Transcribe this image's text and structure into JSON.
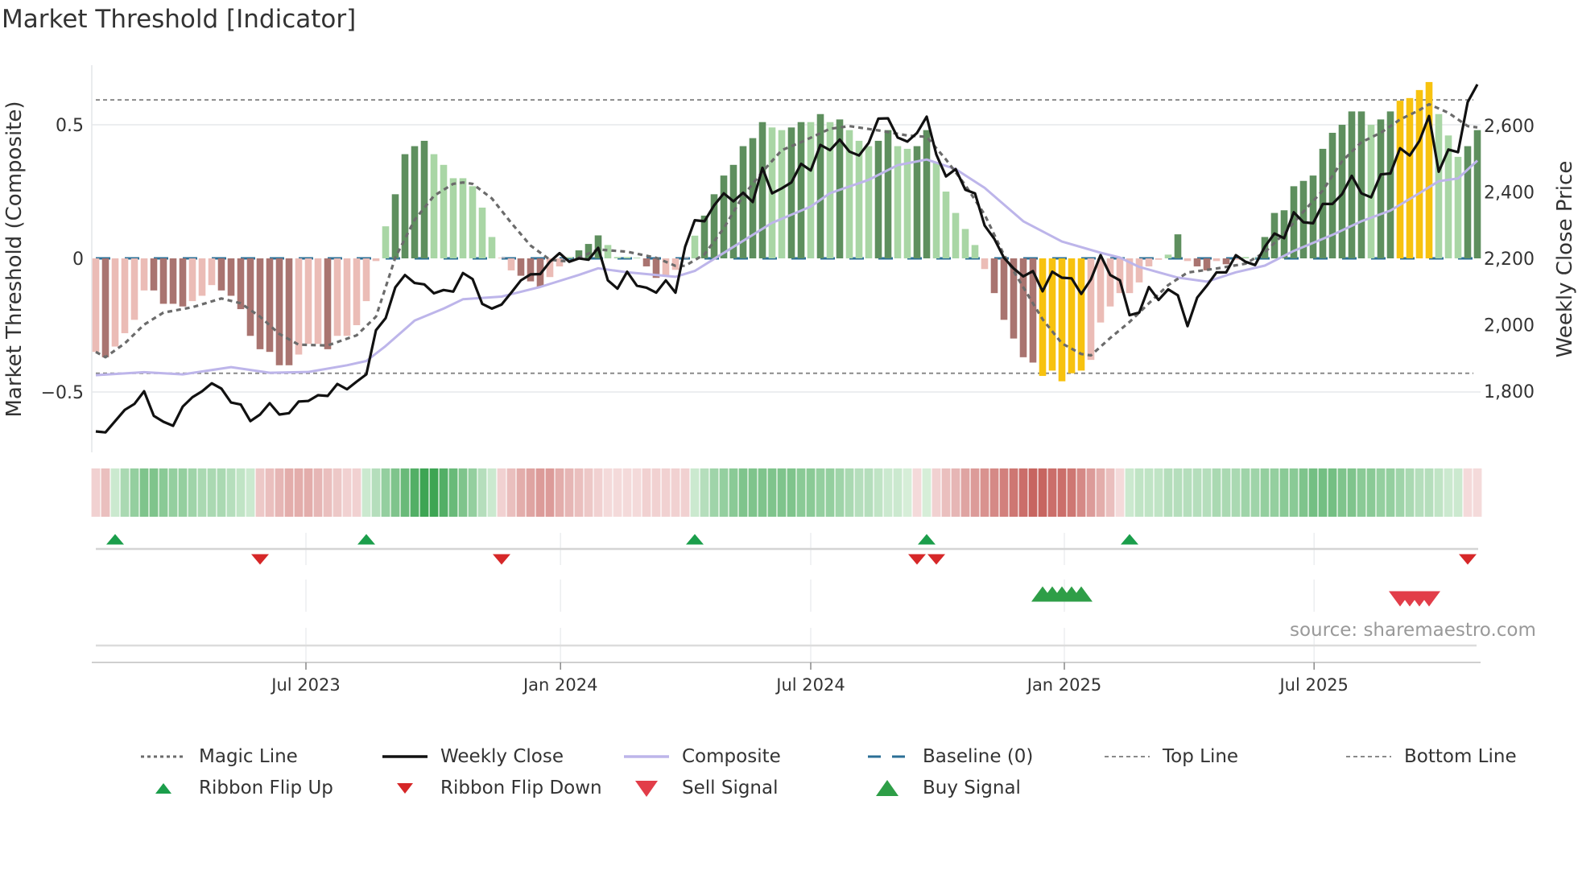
{
  "title": "Market Threshold [Indicator]",
  "source": "source: sharemaestro.com",
  "colors": {
    "bar_dark_green": "#5e8f5e",
    "bar_light_green": "#a9d6a5",
    "bar_dark_red": "#a97470",
    "bar_light_red": "#ebbcb6",
    "bar_yellow": "#f7c20f",
    "weekly_close": "#111111",
    "magic_line": "#6b6b6b",
    "composite_line": "#bdb5ea",
    "baseline": "#2b6f96",
    "threshold_lines": "#8a8a8a",
    "flip_up": "#1b9e4b",
    "flip_down": "#d62728",
    "buy": "#2e9e47",
    "sell": "#e23d49"
  },
  "legend": [
    {
      "label": "Magic Line",
      "icon": "dotted-line"
    },
    {
      "label": "Weekly Close",
      "icon": "solid-black-line"
    },
    {
      "label": "Composite",
      "icon": "lavender-line"
    },
    {
      "label": "Baseline (0)",
      "icon": "dashed-blue-line"
    },
    {
      "label": "Top Line",
      "icon": "dashed-gray-line"
    },
    {
      "label": "Bottom Line",
      "icon": "dashed-gray-line"
    },
    {
      "label": "Ribbon Flip Up",
      "icon": "triangle-up-small"
    },
    {
      "label": "Ribbon Flip Down",
      "icon": "triangle-down-small"
    },
    {
      "label": "Sell Signal",
      "icon": "triangle-down-large"
    },
    {
      "label": "Buy Signal",
      "icon": "triangle-up-large"
    }
  ],
  "chart_data": {
    "type": "bar",
    "title": "Market Threshold [Indicator]",
    "ylabel": "Market Threshold (Composite)",
    "ylabel_right": "Weekly Close Price",
    "ylim": [
      -0.726,
      0.723
    ],
    "ylim_right": [
      1616,
      2782
    ],
    "yticks": [
      {
        "value": 0.5,
        "label": "0.5"
      },
      {
        "value": 0,
        "label": "0"
      },
      {
        "value": -0.5,
        "label": "−0.5"
      }
    ],
    "yticks_right": [
      {
        "value": 2600,
        "label": "2,600"
      },
      {
        "value": 2400,
        "label": "2,400"
      },
      {
        "value": 2200,
        "label": "2,200"
      },
      {
        "value": 2000,
        "label": "2,000"
      },
      {
        "value": 1800,
        "label": "1,800"
      }
    ],
    "x_unit": "week index",
    "xticks": [
      {
        "week": 21.75,
        "label": "Jul 2023"
      },
      {
        "week": 48.1,
        "label": "Jan 2024"
      },
      {
        "week": 74.0,
        "label": "Jul 2024"
      },
      {
        "week": 100.25,
        "label": "Jan 2025"
      },
      {
        "week": 126.1,
        "label": "Jul 2025"
      }
    ],
    "baseline": 0,
    "top_line": 0.593,
    "bottom_line": -0.43,
    "composite_bars": [
      -0.35,
      -0.37,
      -0.33,
      -0.28,
      -0.23,
      -0.12,
      -0.12,
      -0.17,
      -0.17,
      -0.18,
      -0.16,
      -0.14,
      -0.1,
      -0.12,
      -0.14,
      -0.19,
      -0.29,
      -0.34,
      -0.35,
      -0.4,
      -0.4,
      -0.36,
      -0.32,
      -0.32,
      -0.34,
      -0.29,
      -0.29,
      -0.25,
      -0.16,
      -0.01,
      0.12,
      0.24,
      0.39,
      0.42,
      0.44,
      0.39,
      0.35,
      0.3,
      0.3,
      0.27,
      0.19,
      0.08,
      0.0,
      -0.045,
      -0.065,
      -0.086,
      -0.106,
      -0.07,
      -0.03,
      0.005,
      0.03,
      0.054,
      0.086,
      0.05,
      0.005,
      0.005,
      0.0,
      -0.03,
      -0.073,
      -0.065,
      -0.043,
      0.0,
      0.085,
      0.16,
      0.24,
      0.31,
      0.35,
      0.42,
      0.45,
      0.51,
      0.49,
      0.48,
      0.49,
      0.51,
      0.51,
      0.54,
      0.51,
      0.52,
      0.48,
      0.44,
      0.42,
      0.44,
      0.48,
      0.42,
      0.41,
      0.42,
      0.48,
      0.36,
      0.25,
      0.17,
      0.11,
      0.05,
      -0.04,
      -0.13,
      -0.23,
      -0.3,
      -0.37,
      -0.39,
      -0.44,
      -0.42,
      -0.46,
      -0.43,
      -0.42,
      -0.38,
      -0.24,
      -0.18,
      -0.13,
      -0.13,
      -0.09,
      -0.03,
      -0.005,
      0.014,
      0.09,
      -0.01,
      -0.03,
      -0.045,
      -0.01,
      -0.022,
      -0.005,
      0.005,
      0.0,
      0.08,
      0.17,
      0.18,
      0.27,
      0.29,
      0.31,
      0.41,
      0.47,
      0.5,
      0.55,
      0.55,
      0.5,
      0.52,
      0.55,
      0.59,
      0.6,
      0.63,
      0.66,
      0.54,
      0.46,
      0.38,
      0.42,
      0.48
    ],
    "bar_states": [
      "lr",
      "dr",
      "lr",
      "lr",
      "lr",
      "lr",
      "dr",
      "dr",
      "dr",
      "dr",
      "lr",
      "lr",
      "lr",
      "dr",
      "dr",
      "dr",
      "dr",
      "dr",
      "dr",
      "dr",
      "dr",
      "lr",
      "lr",
      "lr",
      "dr",
      "lr",
      "lr",
      "lr",
      "lr",
      "lr",
      "lg",
      "dg",
      "dg",
      "dg",
      "dg",
      "lg",
      "lg",
      "lg",
      "lg",
      "lg",
      "lg",
      "lg",
      "lr",
      "lr",
      "dr",
      "dr",
      "dr",
      "lr",
      "lr",
      "lg",
      "dg",
      "dg",
      "dg",
      "lg",
      "lg",
      "lg",
      "lg",
      "dr",
      "dr",
      "lr",
      "lr",
      "lr",
      "lg",
      "dg",
      "dg",
      "dg",
      "dg",
      "dg",
      "dg",
      "dg",
      "lg",
      "lg",
      "dg",
      "dg",
      "lg",
      "dg",
      "lg",
      "dg",
      "lg",
      "lg",
      "lg",
      "dg",
      "dg",
      "lg",
      "lg",
      "dg",
      "dg",
      "lg",
      "lg",
      "lg",
      "lg",
      "lg",
      "lr",
      "dr",
      "dr",
      "dr",
      "dr",
      "dr",
      "y",
      "y",
      "y",
      "y",
      "y",
      "lr",
      "lr",
      "lr",
      "lr",
      "lr",
      "lr",
      "lr",
      "lr",
      "lg",
      "dg",
      "lr",
      "dr",
      "dr",
      "lr",
      "dr",
      "lr",
      "lg",
      "lg",
      "dg",
      "dg",
      "dg",
      "dg",
      "dg",
      "dg",
      "dg",
      "dg",
      "dg",
      "dg",
      "dg",
      "lg",
      "dg",
      "dg",
      "y",
      "y",
      "y",
      "y",
      "lg",
      "lg",
      "lg",
      "dg",
      "dg"
    ],
    "weekly_close": [
      1679,
      1676,
      1710,
      1744,
      1762,
      1800,
      1726,
      1708,
      1696,
      1754,
      1782,
      1800,
      1824,
      1808,
      1766,
      1760,
      1710,
      1730,
      1764,
      1730,
      1734,
      1769,
      1771,
      1788,
      1786,
      1822,
      1806,
      1829,
      1851,
      1984,
      2020,
      2113,
      2150,
      2126,
      2122,
      2095,
      2105,
      2100,
      2156,
      2138,
      2063,
      2049,
      2061,
      2097,
      2134,
      2152,
      2153,
      2190,
      2216,
      2190,
      2200,
      2196,
      2232,
      2134,
      2109,
      2160,
      2118,
      2112,
      2097,
      2134,
      2097,
      2235,
      2315,
      2312,
      2360,
      2396,
      2372,
      2398,
      2370,
      2473,
      2396,
      2411,
      2429,
      2485,
      2465,
      2542,
      2526,
      2558,
      2522,
      2510,
      2548,
      2621,
      2622,
      2564,
      2552,
      2578,
      2627,
      2513,
      2447,
      2469,
      2407,
      2396,
      2299,
      2259,
      2202,
      2170,
      2146,
      2162,
      2101,
      2160,
      2142,
      2140,
      2093,
      2137,
      2210,
      2150,
      2134,
      2029,
      2037,
      2114,
      2075,
      2107,
      2089,
      1996,
      2082,
      2118,
      2158,
      2158,
      2210,
      2190,
      2180,
      2235,
      2275,
      2261,
      2339,
      2309,
      2306,
      2364,
      2364,
      2394,
      2449,
      2396,
      2384,
      2453,
      2456,
      2532,
      2510,
      2554,
      2629,
      2461,
      2528,
      2520,
      2671,
      2724
    ],
    "magic_line": [
      [
        0,
        -0.35
      ],
      [
        1,
        -0.37
      ],
      [
        3,
        -0.318
      ],
      [
        5,
        -0.248
      ],
      [
        7,
        -0.203
      ],
      [
        10,
        -0.183
      ],
      [
        13,
        -0.15
      ],
      [
        15,
        -0.168
      ],
      [
        17,
        -0.218
      ],
      [
        19,
        -0.283
      ],
      [
        21,
        -0.323
      ],
      [
        24,
        -0.326
      ],
      [
        27,
        -0.288
      ],
      [
        29,
        -0.218
      ],
      [
        30,
        -0.108
      ],
      [
        31,
        0.003
      ],
      [
        33,
        0.144
      ],
      [
        35,
        0.234
      ],
      [
        37,
        0.279
      ],
      [
        38,
        0.284
      ],
      [
        39,
        0.279
      ],
      [
        41,
        0.224
      ],
      [
        43,
        0.133
      ],
      [
        45,
        0.048
      ],
      [
        47,
        -0.005
      ],
      [
        49,
        -0.012
      ],
      [
        52,
        0.033
      ],
      [
        55,
        0.025
      ],
      [
        58,
        0.002
      ],
      [
        60,
        -0.028
      ],
      [
        61,
        -0.028
      ],
      [
        63,
        0.015
      ],
      [
        65,
        0.113
      ],
      [
        67,
        0.234
      ],
      [
        69,
        0.324
      ],
      [
        71,
        0.405
      ],
      [
        73,
        0.435
      ],
      [
        76,
        0.485
      ],
      [
        78,
        0.495
      ],
      [
        81,
        0.479
      ],
      [
        84,
        0.46
      ],
      [
        86,
        0.455
      ],
      [
        88,
        0.37
      ],
      [
        90,
        0.274
      ],
      [
        92,
        0.164
      ],
      [
        94,
        0.013
      ],
      [
        96,
        -0.108
      ],
      [
        98,
        -0.228
      ],
      [
        100,
        -0.318
      ],
      [
        102,
        -0.358
      ],
      [
        103,
        -0.363
      ],
      [
        105,
        -0.298
      ],
      [
        107,
        -0.238
      ],
      [
        109,
        -0.168
      ],
      [
        111,
        -0.1
      ],
      [
        113,
        -0.053
      ],
      [
        116,
        -0.038
      ],
      [
        119,
        -0.02
      ],
      [
        121,
        0.023
      ],
      [
        123,
        0.093
      ],
      [
        125,
        0.175
      ],
      [
        127,
        0.254
      ],
      [
        129,
        0.364
      ],
      [
        131,
        0.435
      ],
      [
        133,
        0.47
      ],
      [
        135,
        0.52
      ],
      [
        137,
        0.555
      ],
      [
        138,
        0.577
      ],
      [
        140,
        0.545
      ],
      [
        142,
        0.495
      ],
      [
        143,
        0.49
      ]
    ],
    "composite_line": [
      [
        0,
        -0.437
      ],
      [
        5,
        -0.426
      ],
      [
        9,
        -0.434
      ],
      [
        14,
        -0.407
      ],
      [
        18,
        -0.428
      ],
      [
        22,
        -0.425
      ],
      [
        26,
        -0.4
      ],
      [
        28,
        -0.384
      ],
      [
        30,
        -0.328
      ],
      [
        33,
        -0.233
      ],
      [
        36,
        -0.188
      ],
      [
        38,
        -0.153
      ],
      [
        42,
        -0.143
      ],
      [
        46,
        -0.107
      ],
      [
        50,
        -0.062
      ],
      [
        52,
        -0.037
      ],
      [
        55,
        -0.052
      ],
      [
        60,
        -0.069
      ],
      [
        62,
        -0.047
      ],
      [
        64,
        -0.002
      ],
      [
        66,
        0.043
      ],
      [
        70,
        0.133
      ],
      [
        74,
        0.194
      ],
      [
        76,
        0.244
      ],
      [
        80,
        0.294
      ],
      [
        83,
        0.349
      ],
      [
        86,
        0.37
      ],
      [
        89,
        0.334
      ],
      [
        92,
        0.264
      ],
      [
        96,
        0.139
      ],
      [
        100,
        0.063
      ],
      [
        104,
        0.021
      ],
      [
        106,
        0.003
      ],
      [
        108,
        -0.032
      ],
      [
        110,
        -0.052
      ],
      [
        112,
        -0.072
      ],
      [
        115,
        -0.087
      ],
      [
        118,
        -0.052
      ],
      [
        121,
        -0.027
      ],
      [
        124,
        0.028
      ],
      [
        128,
        0.088
      ],
      [
        131,
        0.139
      ],
      [
        134,
        0.179
      ],
      [
        137,
        0.244
      ],
      [
        139,
        0.289
      ],
      [
        141,
        0.299
      ],
      [
        143,
        0.366
      ]
    ],
    "ribbon": [
      -0.2,
      -0.3,
      0.2,
      0.35,
      0.45,
      0.55,
      0.55,
      0.5,
      0.45,
      0.45,
      0.4,
      0.35,
      0.35,
      0.35,
      0.3,
      0.25,
      0.2,
      -0.25,
      -0.3,
      -0.35,
      -0.4,
      -0.4,
      -0.4,
      -0.35,
      -0.3,
      -0.25,
      -0.2,
      -0.2,
      0.2,
      0.3,
      0.45,
      0.55,
      0.65,
      0.75,
      0.85,
      0.85,
      0.75,
      0.65,
      0.55,
      0.45,
      0.3,
      0.2,
      -0.2,
      -0.3,
      -0.4,
      -0.45,
      -0.5,
      -0.5,
      -0.4,
      -0.35,
      -0.3,
      -0.25,
      -0.2,
      -0.15,
      -0.15,
      -0.15,
      -0.15,
      -0.2,
      -0.2,
      -0.2,
      -0.2,
      -0.2,
      0.2,
      0.3,
      0.4,
      0.45,
      0.5,
      0.55,
      0.55,
      0.55,
      0.55,
      0.55,
      0.55,
      0.5,
      0.5,
      0.45,
      0.45,
      0.4,
      0.35,
      0.3,
      0.3,
      0.25,
      0.2,
      0.2,
      0.15,
      -0.15,
      0.15,
      -0.2,
      -0.3,
      -0.35,
      -0.45,
      -0.5,
      -0.55,
      -0.6,
      -0.65,
      -0.7,
      -0.75,
      -0.8,
      -0.8,
      -0.75,
      -0.75,
      -0.7,
      -0.6,
      -0.5,
      -0.4,
      -0.3,
      -0.15,
      0.2,
      0.25,
      0.25,
      0.25,
      0.3,
      0.3,
      0.3,
      0.3,
      0.3,
      0.35,
      0.35,
      0.35,
      0.4,
      0.4,
      0.45,
      0.45,
      0.5,
      0.5,
      0.55,
      0.6,
      0.6,
      0.6,
      0.55,
      0.55,
      0.5,
      0.5,
      0.45,
      0.45,
      0.4,
      0.35,
      0.3,
      0.3,
      0.25,
      0.2,
      0.2,
      -0.15,
      -0.15
    ],
    "ribbon_flip_up": [
      2,
      28,
      62,
      86,
      107
    ],
    "ribbon_flip_down": [
      17,
      42,
      85,
      87,
      142
    ],
    "buy_signals": [
      98,
      99,
      100,
      101,
      102
    ],
    "sell_signals": [
      135,
      136,
      137,
      138
    ],
    "grid": true,
    "legend_position": "bottom"
  }
}
